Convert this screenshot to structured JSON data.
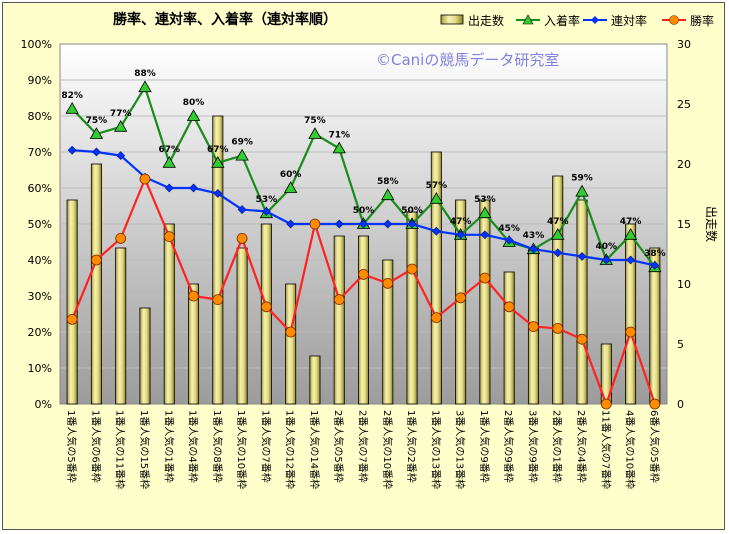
{
  "chart_data": {
    "type": "bar+line",
    "title": "勝率、連対率、入着率（連対率順）",
    "watermark": "©Caniの競馬データ研究室",
    "y2label": "出走数",
    "ylim": [
      0,
      100
    ],
    "y2lim": [
      0,
      30
    ],
    "y_ticks": [
      "0%",
      "10%",
      "20%",
      "30%",
      "40%",
      "50%",
      "60%",
      "70%",
      "80%",
      "90%",
      "100%"
    ],
    "y2_ticks": [
      "0",
      "5",
      "10",
      "15",
      "20",
      "25",
      "30"
    ],
    "categories": [
      "1番人気の5番枠",
      "1番人気の6番枠",
      "1番人気の11番枠",
      "1番人気の15番枠",
      "1番人気の1番枠",
      "1番人気の4番枠",
      "1番人気の8番枠",
      "1番人気の10番枠",
      "1番人気の7番枠",
      "1番人気の12番枠",
      "1番人気の14番枠",
      "2番人気の5番枠",
      "2番人気の7番枠",
      "2番人気の10番枠",
      "1番人気の2番枠",
      "1番人気の13番枠",
      "3番人気の13番枠",
      "1番人気の9番枠",
      "2番人気の9番枠",
      "3番人気の9番枠",
      "2番人気の1番枠",
      "2番人気の4番枠",
      "11番人気の7番枠",
      "4番人気の10番枠",
      "6番人気の5番枠"
    ],
    "legend": [
      "出走数",
      "入着率",
      "連対率",
      "勝率"
    ],
    "series": [
      {
        "name": "出走数",
        "kind": "bar",
        "axis": "right",
        "color": "#e6e08c",
        "values": [
          17,
          20,
          13,
          8,
          15,
          10,
          24,
          13,
          15,
          10,
          4,
          14,
          14,
          12,
          16,
          21,
          17,
          17,
          11,
          13,
          19,
          17,
          5,
          15,
          13
        ]
      },
      {
        "name": "入着率",
        "kind": "line",
        "axis": "left",
        "color": "#1a8c1a",
        "values": [
          82,
          75,
          77,
          88,
          67,
          80,
          67,
          69,
          53,
          60,
          75,
          71,
          50,
          58,
          50,
          57,
          47,
          53,
          45,
          43,
          47,
          59,
          40,
          47,
          38
        ],
        "labels": [
          "82%",
          "75%",
          "77%",
          "88%",
          "67%",
          "80%",
          "67%",
          "69%",
          "53%",
          "60%",
          "75%",
          "71%",
          "50%",
          "58%",
          "50%",
          "57%",
          "47%",
          "53%",
          "45%",
          "43%",
          "47%",
          "59%",
          "40%",
          "47%",
          "38%"
        ]
      },
      {
        "name": "連対率",
        "kind": "line",
        "axis": "left",
        "color": "#0033ff",
        "values": [
          70.5,
          70,
          69,
          63,
          60,
          60,
          58.5,
          54,
          53.5,
          50,
          50,
          50,
          50,
          50,
          50,
          48,
          47,
          47,
          45.5,
          43,
          42,
          41,
          40,
          40,
          38.5
        ]
      },
      {
        "name": "勝率",
        "kind": "line",
        "axis": "left",
        "color": "#ff2222",
        "values": [
          23.5,
          40,
          46,
          62.5,
          46.5,
          30,
          29,
          46,
          27,
          20,
          50,
          29,
          36,
          33.5,
          37.5,
          24,
          29.5,
          35,
          27,
          21.5,
          21,
          18,
          0,
          20,
          0
        ]
      }
    ]
  }
}
